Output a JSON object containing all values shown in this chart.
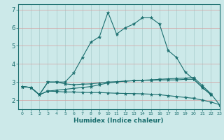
{
  "title": "",
  "xlabel": "Humidex (Indice chaleur)",
  "xlim": [
    -0.5,
    23
  ],
  "ylim": [
    1.5,
    7.3
  ],
  "xticks": [
    0,
    1,
    2,
    3,
    4,
    5,
    6,
    7,
    8,
    9,
    10,
    11,
    12,
    13,
    14,
    15,
    16,
    17,
    18,
    19,
    20,
    21,
    22,
    23
  ],
  "yticks": [
    2,
    3,
    4,
    5,
    6,
    7
  ],
  "background_color": "#cce9e9",
  "plot_bg_color": "#cce9e9",
  "grid_color_h": "#d4a0a0",
  "grid_color_v": "#a8cccc",
  "line_color": "#1a6e6e",
  "lines": [
    {
      "x": [
        0,
        1,
        2,
        3,
        4,
        5,
        6,
        7,
        8,
        9,
        10,
        11,
        12,
        13,
        14,
        15,
        16,
        17,
        18,
        19,
        20,
        21,
        22
      ],
      "y": [
        2.75,
        2.7,
        2.3,
        3.0,
        3.0,
        3.0,
        3.5,
        4.35,
        5.2,
        5.5,
        6.85,
        5.65,
        6.0,
        6.2,
        6.55,
        6.55,
        6.2,
        4.75,
        4.35,
        3.55,
        3.15,
        2.7,
        2.3
      ]
    },
    {
      "x": [
        0,
        1,
        2,
        3,
        4,
        5,
        6,
        7,
        8,
        9,
        10,
        11,
        12,
        13,
        14,
        15,
        16,
        17,
        18,
        19,
        20,
        21,
        22
      ],
      "y": [
        2.75,
        2.7,
        2.3,
        3.0,
        3.0,
        2.9,
        2.85,
        2.88,
        2.9,
        2.95,
        3.0,
        3.02,
        3.05,
        3.07,
        3.1,
        3.1,
        3.12,
        3.12,
        3.12,
        3.15,
        3.15,
        2.7,
        2.3
      ]
    },
    {
      "x": [
        0,
        1,
        2,
        3,
        4,
        5,
        6,
        7,
        8,
        9,
        10,
        11,
        12,
        13,
        14,
        15,
        16,
        17,
        18,
        19,
        20,
        21,
        22,
        23
      ],
      "y": [
        2.75,
        2.7,
        2.3,
        2.5,
        2.55,
        2.6,
        2.65,
        2.7,
        2.75,
        2.85,
        2.95,
        3.0,
        3.05,
        3.08,
        3.1,
        3.12,
        3.15,
        3.18,
        3.2,
        3.22,
        3.25,
        2.8,
        2.35,
        1.75
      ]
    },
    {
      "x": [
        0,
        1,
        2,
        3,
        4,
        5,
        6,
        7,
        8,
        9,
        10,
        11,
        12,
        13,
        14,
        15,
        16,
        17,
        18,
        19,
        20,
        21,
        22,
        23
      ],
      "y": [
        2.75,
        2.7,
        2.3,
        2.5,
        2.48,
        2.45,
        2.45,
        2.43,
        2.42,
        2.42,
        2.4,
        2.38,
        2.37,
        2.36,
        2.35,
        2.33,
        2.3,
        2.25,
        2.2,
        2.15,
        2.1,
        2.0,
        1.9,
        1.75
      ]
    }
  ]
}
